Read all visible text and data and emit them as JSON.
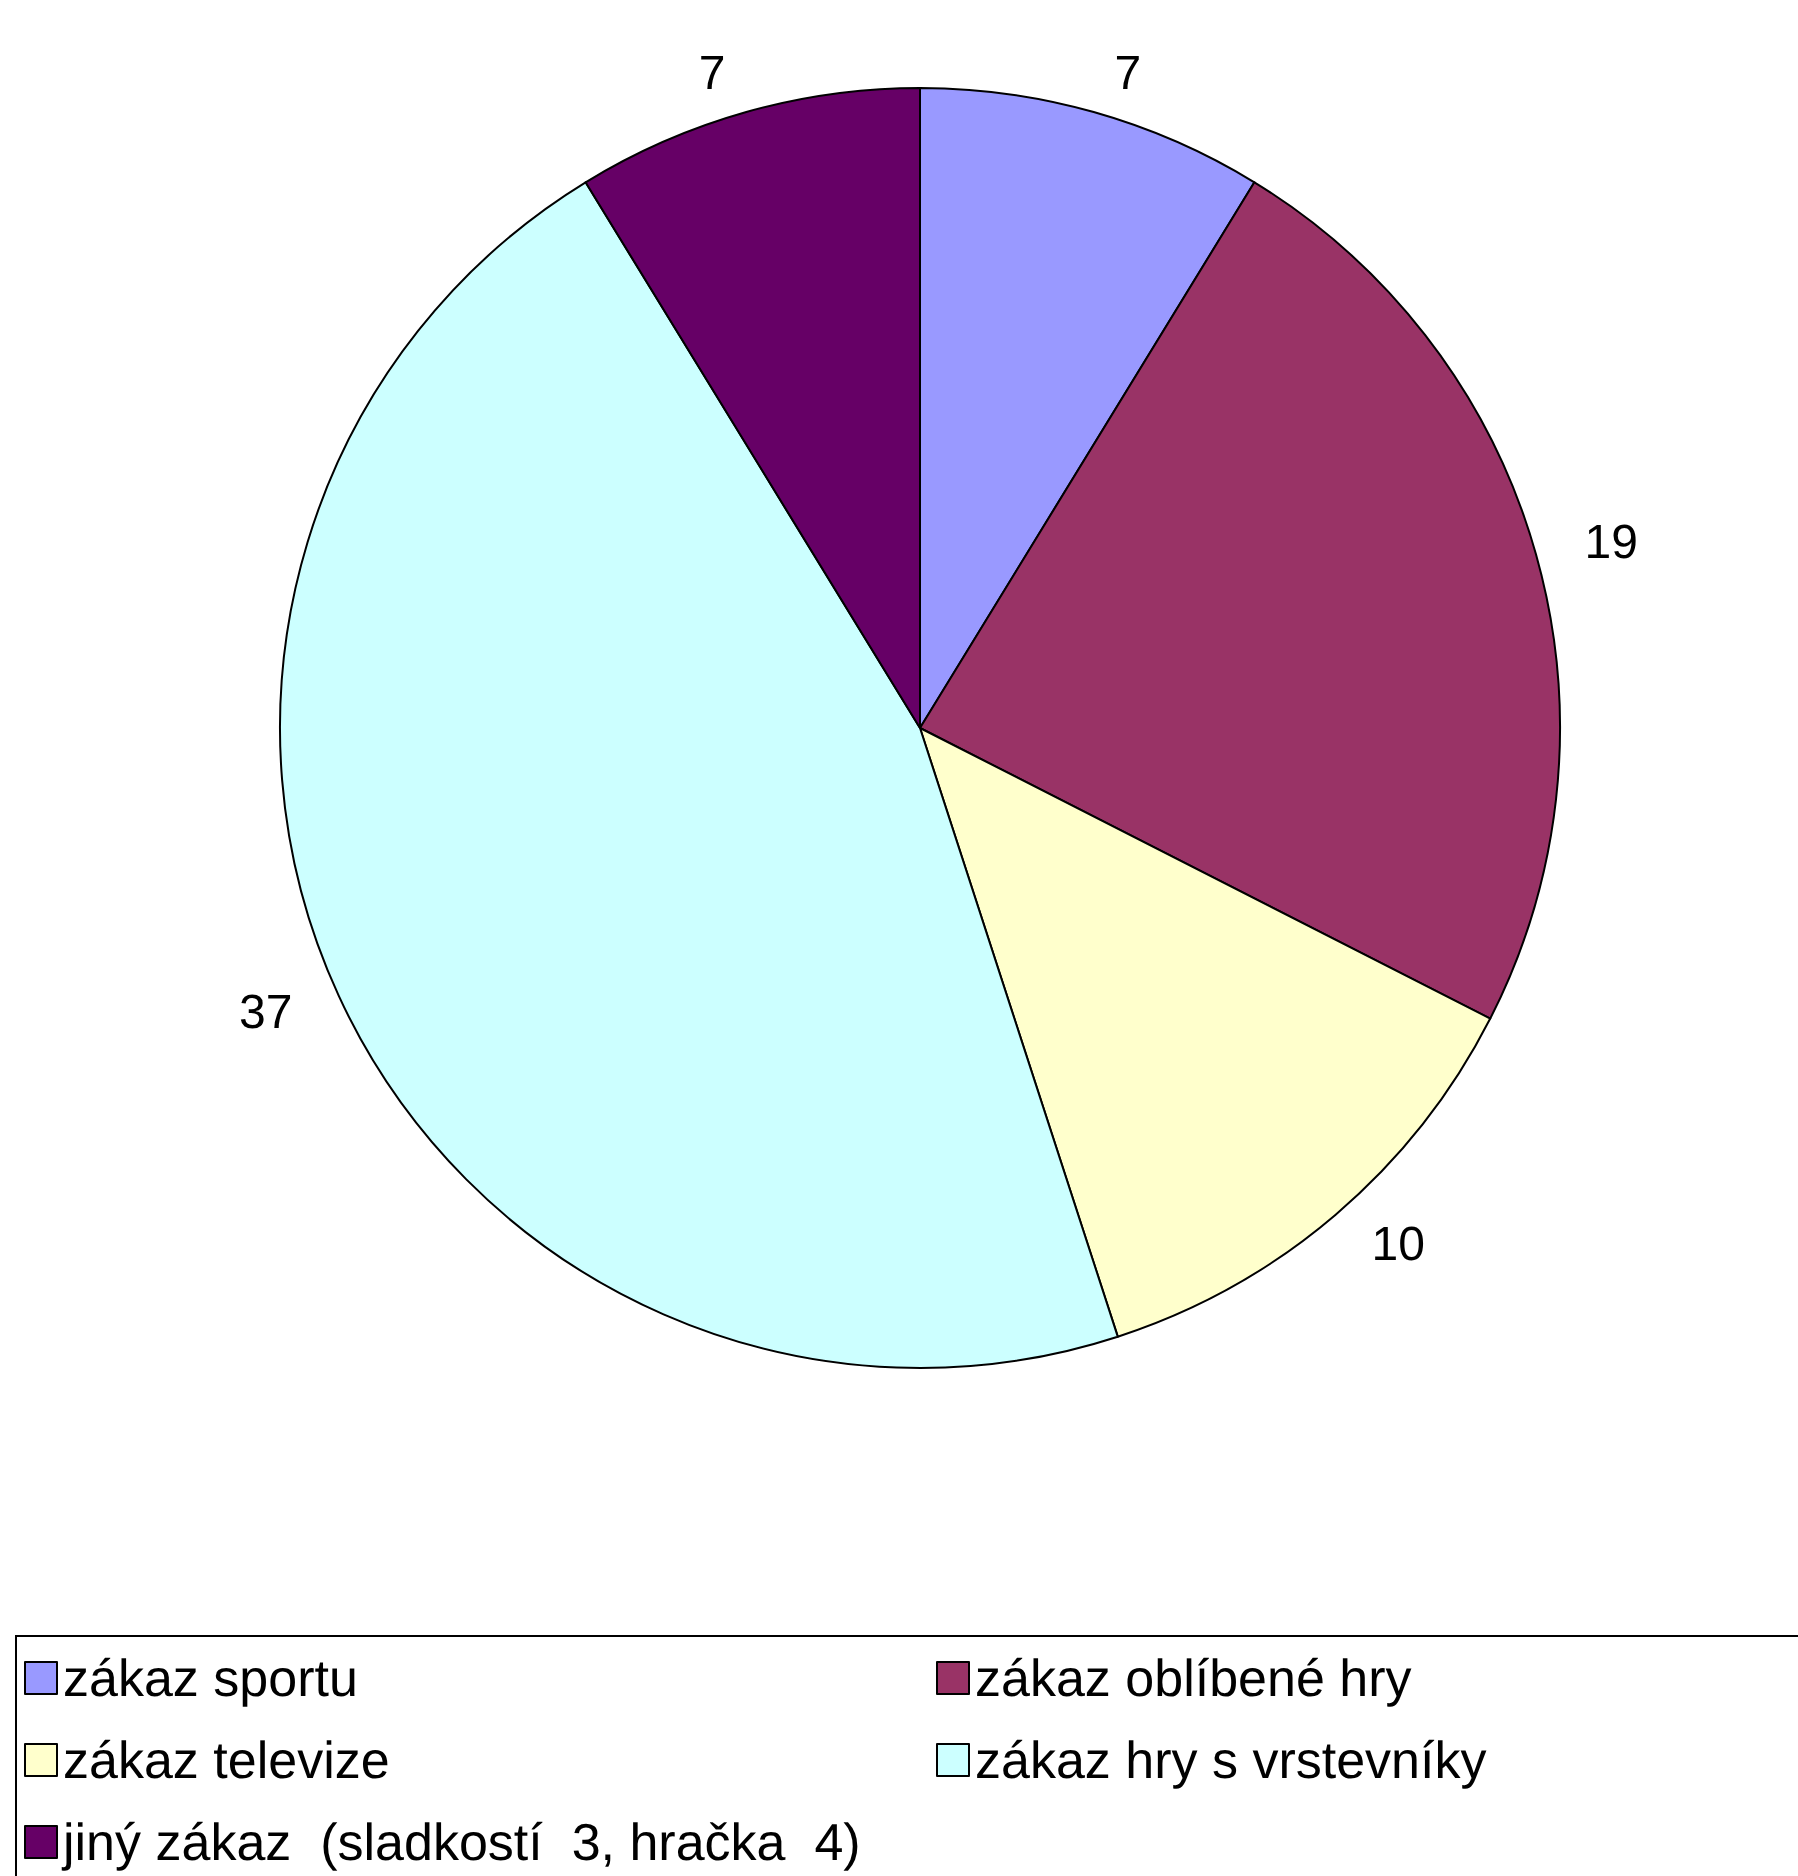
{
  "chart_data": {
    "type": "pie",
    "categories": [
      "zákaz sportu",
      "zákaz oblíbené hry",
      "zákaz televize",
      "zákaz hry s vrstevníky",
      "jiný zákaz  (sladkostí  3, hračka  4)"
    ],
    "values": [
      7,
      19,
      10,
      37,
      7
    ],
    "colors": [
      "#9999ff",
      "#993366",
      "#ffffcc",
      "#ccffff",
      "#660066"
    ],
    "data_labels": true,
    "legend": "bottom"
  }
}
